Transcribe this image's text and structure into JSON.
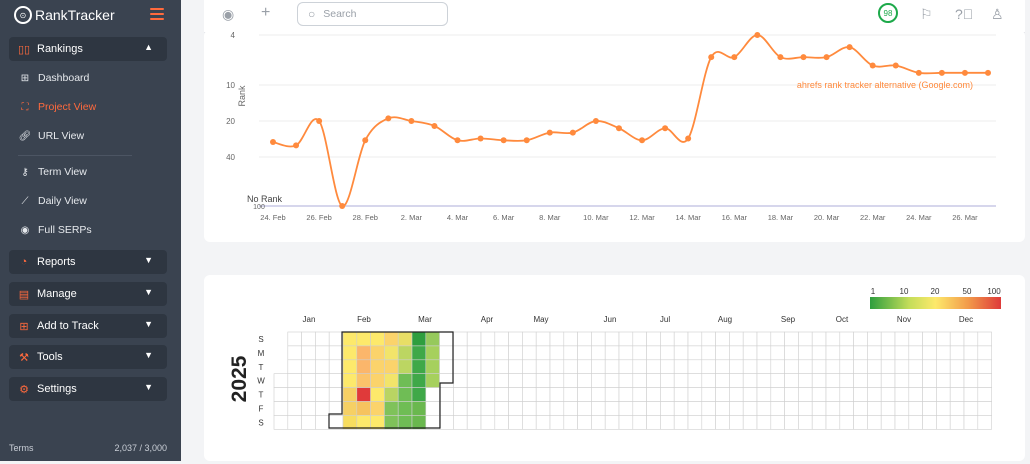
{
  "app": {
    "logo_text": "RankTracker"
  },
  "sidebar": {
    "rankings_label": "Rankings",
    "items": [
      {
        "label": "Dashboard",
        "icon": "dashboard-icon"
      },
      {
        "label": "Project View",
        "icon": "project-view-icon",
        "active": true
      },
      {
        "label": "URL View",
        "icon": "link-icon"
      },
      {
        "label": "Term View",
        "icon": "key-icon"
      },
      {
        "label": "Daily View",
        "icon": "chart-line-icon"
      },
      {
        "label": "Full SERPs",
        "icon": "serp-icon"
      }
    ],
    "sections": [
      {
        "label": "Reports",
        "icon": "pie-chart-icon"
      },
      {
        "label": "Manage",
        "icon": "file-icon"
      },
      {
        "label": "Add to Track",
        "icon": "plus-square-icon"
      },
      {
        "label": "Tools",
        "icon": "hammer-icon"
      },
      {
        "label": "Settings",
        "icon": "gear-icon"
      }
    ],
    "footer_terms": "Terms",
    "footer_usage": "2,037 / 3,000"
  },
  "topbar": {
    "search_placeholder": "Search",
    "score": "98"
  },
  "chart_data": {
    "type": "line",
    "ylabel": "Rank",
    "series_label": "ahrefs rank tracker alternative (Google.com)",
    "y_ticks": [
      "4",
      "10",
      "20",
      "40",
      "100"
    ],
    "no_rank_label": "No Rank",
    "x_ticks": [
      "24. Feb",
      "26. Feb",
      "28. Feb",
      "2. Mar",
      "4. Mar",
      "6. Mar",
      "8. Mar",
      "10. Mar",
      "12. Mar",
      "14. Mar",
      "16. Mar",
      "18. Mar",
      "20. Mar",
      "22. Mar",
      "24. Mar",
      "26. Mar"
    ],
    "color": "#ff8a3d",
    "x_start": "2025-02-24",
    "values": [
      30,
      32,
      20,
      "No Rank",
      29,
      19,
      20,
      22,
      29,
      28,
      29,
      29,
      25,
      25,
      20,
      23,
      29,
      23,
      28,
      6,
      6,
      4,
      6,
      6,
      6,
      5,
      7,
      7,
      8,
      8,
      8,
      8
    ]
  },
  "heatmap": {
    "year": "2025",
    "months": [
      "Jan",
      "Feb",
      "Mar",
      "Apr",
      "May",
      "Jun",
      "Jul",
      "Aug",
      "Sep",
      "Oct",
      "Nov",
      "Dec"
    ],
    "days": [
      "S",
      "M",
      "T",
      "W",
      "T",
      "F",
      "S"
    ],
    "scale_labels": [
      "1",
      "10",
      "20",
      "50",
      "100"
    ],
    "week_columns": [
      [
        "#fde96b",
        "#fde96b",
        "#fde96b",
        "#fde96b",
        "#f6d064",
        "#f6d064",
        "#f7dd5f"
      ],
      [
        "#fde96b",
        "#fbb66b",
        "#fbb66b",
        "#fbc36b",
        "#e03a3a",
        "#f6c35f",
        "#fde96b"
      ],
      [
        "#fde96b",
        "#fbd36b",
        "#fbd36b",
        "#fbd36b",
        "#fde96b",
        "#fbd36b",
        "#fde96b"
      ],
      [
        "#fbd36b",
        "#f2e46a",
        "#fbd36b",
        "#f2e46a",
        "#b9d463",
        "#7fc25a",
        "#7fc25a"
      ],
      [
        "#e8de66",
        "#bcd662",
        "#bcd662",
        "#6fbd55",
        "#6fbd55",
        "#6fbd55",
        "#6fbd55"
      ],
      [
        "#2e9e3e",
        "#3fa848",
        "#3fa848",
        "#3fa848",
        "#3fa848",
        "#6ab84f",
        "#6ab84f"
      ],
      [
        "#96c95c",
        "#a6d05d",
        "#a6d05d",
        "#a6d05d",
        "",
        "",
        ""
      ]
    ]
  }
}
